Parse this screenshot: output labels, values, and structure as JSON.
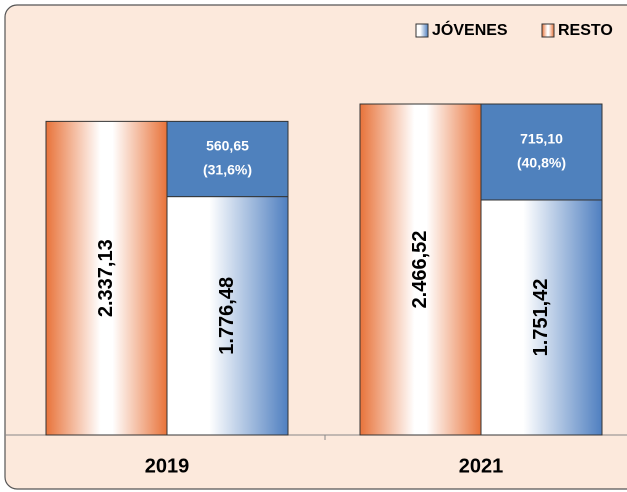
{
  "chart_data": {
    "type": "bar",
    "categories": [
      "2019",
      "2021"
    ],
    "series": [
      {
        "name": "RESTO",
        "color": "#e8733a",
        "values": [
          2337.13,
          2466.52
        ],
        "value_labels": [
          "2.337,13",
          "2.466,52"
        ]
      },
      {
        "name": "JÓVENES",
        "color": "#4f81bd",
        "stack": "j",
        "values": [
          1776.48,
          1751.42
        ],
        "value_labels": [
          "1.776,48",
          "1.751,42"
        ]
      },
      {
        "color": "#4f81bd",
        "stack": "j",
        "values": [
          560.65,
          715.1
        ],
        "value_labels": [
          "560,65",
          "715,10"
        ],
        "share_labels": [
          "(31,6%)",
          "(40,8%)"
        ]
      }
    ],
    "ylim": [
      0,
      3100
    ],
    "legend": "top-right"
  }
}
